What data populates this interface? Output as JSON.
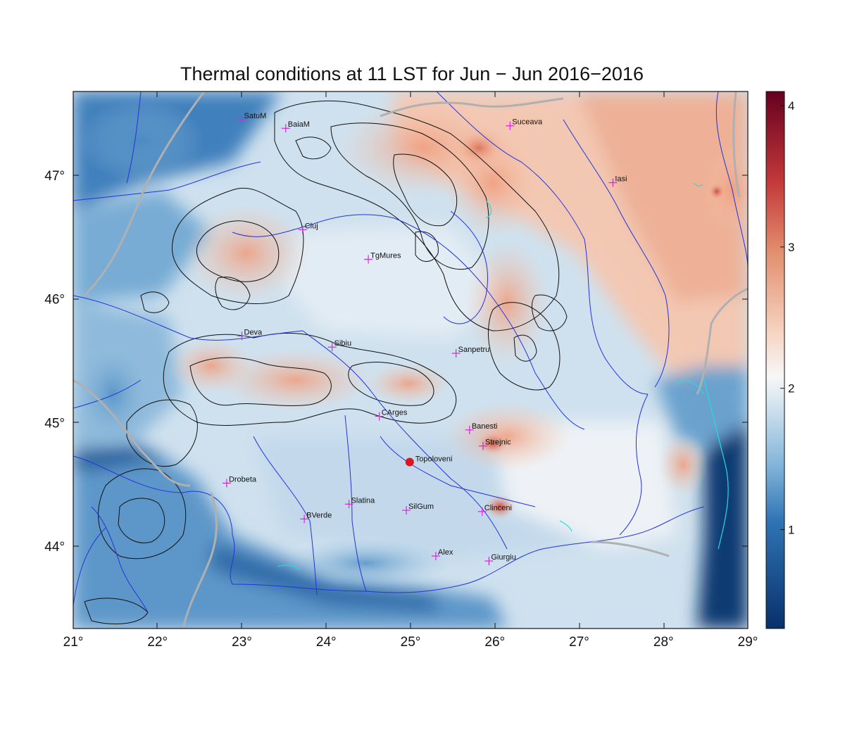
{
  "title": "Thermal conditions at 11 LST for Jun − Jun  2016−2016",
  "colors": {
    "river": "#2233dd",
    "border": "#b0b0b0",
    "contour": "#111111",
    "marker": "#dd22dd",
    "highlight": "#e0141e",
    "lake": "#22dddd",
    "sea": "#0a3a6e"
  },
  "axes": {
    "lon_ticks": [
      "21°",
      "22°",
      "23°",
      "24°",
      "25°",
      "26°",
      "27°",
      "28°",
      "29°"
    ],
    "lat_ticks": [
      "47°",
      "46°",
      "45°",
      "44°"
    ]
  },
  "colorbar": {
    "labels": [
      "4",
      "3",
      "2",
      "1"
    ],
    "range": [
      0.3,
      4.1
    ],
    "colormap": "blue-white-red diverging"
  },
  "cities": [
    {
      "name": "SatuM",
      "lon": 23.0,
      "lat": 47.45
    },
    {
      "name": "BaiaM",
      "lon": 23.52,
      "lat": 47.38
    },
    {
      "name": "Suceava",
      "lon": 26.18,
      "lat": 47.4
    },
    {
      "name": "Iasi",
      "lon": 27.4,
      "lat": 46.94
    },
    {
      "name": "Cluj",
      "lon": 23.72,
      "lat": 46.56
    },
    {
      "name": "TgMures",
      "lon": 24.5,
      "lat": 46.32
    },
    {
      "name": "Deva",
      "lon": 23.0,
      "lat": 45.7
    },
    {
      "name": "Sibiu",
      "lon": 24.07,
      "lat": 45.61
    },
    {
      "name": "Sanpetru",
      "lon": 25.54,
      "lat": 45.56
    },
    {
      "name": "CArges",
      "lon": 24.63,
      "lat": 45.05
    },
    {
      "name": "Banesti",
      "lon": 25.7,
      "lat": 44.94
    },
    {
      "name": "Strejnic",
      "lon": 25.86,
      "lat": 44.81
    },
    {
      "name": "Drobeta",
      "lon": 22.82,
      "lat": 44.51
    },
    {
      "name": "Slatina",
      "lon": 24.27,
      "lat": 44.34
    },
    {
      "name": "SilGum",
      "lon": 24.95,
      "lat": 44.29
    },
    {
      "name": "Clinceni",
      "lon": 25.85,
      "lat": 44.28
    },
    {
      "name": "BVerde",
      "lon": 23.74,
      "lat": 44.22
    },
    {
      "name": "Alex",
      "lon": 25.3,
      "lat": 43.92
    },
    {
      "name": "Giurgiu",
      "lon": 25.93,
      "lat": 43.88
    }
  ],
  "highlight_site": {
    "name": "Topoloveni",
    "lon": 24.99,
    "lat": 44.68
  }
}
